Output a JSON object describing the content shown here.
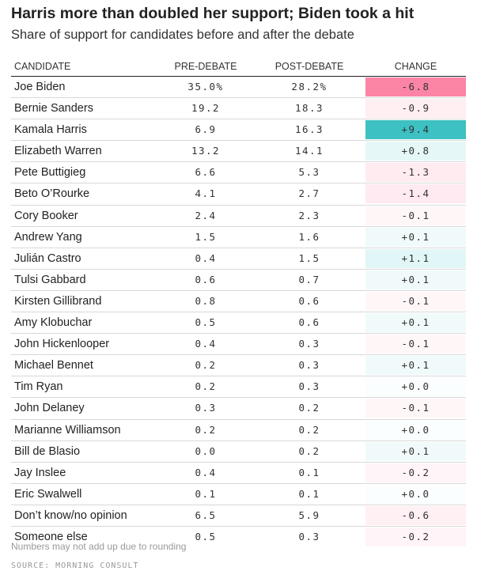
{
  "title": "Harris more than doubled her support; Biden took a hit",
  "subtitle": "Share of support for candidates before and after the debate",
  "note": "Numbers may not add up due to rounding",
  "source": "SOURCE: MORNING CONSULT",
  "colors": {
    "positive": "#3ec1c3",
    "negative": "#fc84a5",
    "text": "#222222",
    "muted": "#999999"
  },
  "chart_data": {
    "type": "table",
    "columns": [
      "CANDIDATE",
      "PRE-DEBATE",
      "POST-DEBATE",
      "CHANGE"
    ],
    "rows": [
      {
        "candidate": "Joe Biden",
        "pre": "35.0%",
        "post": "28.2%",
        "change": "-6.8",
        "change_value": -6.8
      },
      {
        "candidate": "Bernie Sanders",
        "pre": "19.2",
        "post": "18.3",
        "change": "-0.9",
        "change_value": -0.9
      },
      {
        "candidate": "Kamala Harris",
        "pre": "6.9",
        "post": "16.3",
        "change": "+9.4",
        "change_value": 9.4
      },
      {
        "candidate": "Elizabeth Warren",
        "pre": "13.2",
        "post": "14.1",
        "change": "+0.8",
        "change_value": 0.8
      },
      {
        "candidate": "Pete Buttigieg",
        "pre": "6.6",
        "post": "5.3",
        "change": "-1.3",
        "change_value": -1.3
      },
      {
        "candidate": "Beto O’Rourke",
        "pre": "4.1",
        "post": "2.7",
        "change": "-1.4",
        "change_value": -1.4
      },
      {
        "candidate": "Cory Booker",
        "pre": "2.4",
        "post": "2.3",
        "change": "-0.1",
        "change_value": -0.1
      },
      {
        "candidate": "Andrew Yang",
        "pre": "1.5",
        "post": "1.6",
        "change": "+0.1",
        "change_value": 0.1
      },
      {
        "candidate": "Julián Castro",
        "pre": "0.4",
        "post": "1.5",
        "change": "+1.1",
        "change_value": 1.1
      },
      {
        "candidate": "Tulsi Gabbard",
        "pre": "0.6",
        "post": "0.7",
        "change": "+0.1",
        "change_value": 0.1
      },
      {
        "candidate": "Kirsten Gillibrand",
        "pre": "0.8",
        "post": "0.6",
        "change": "-0.1",
        "change_value": -0.1
      },
      {
        "candidate": "Amy Klobuchar",
        "pre": "0.5",
        "post": "0.6",
        "change": "+0.1",
        "change_value": 0.1
      },
      {
        "candidate": "John Hickenlooper",
        "pre": "0.4",
        "post": "0.3",
        "change": "-0.1",
        "change_value": -0.1
      },
      {
        "candidate": "Michael Bennet",
        "pre": "0.2",
        "post": "0.3",
        "change": "+0.1",
        "change_value": 0.1
      },
      {
        "candidate": "Tim Ryan",
        "pre": "0.2",
        "post": "0.3",
        "change": "+0.0",
        "change_value": 0.0
      },
      {
        "candidate": "John Delaney",
        "pre": "0.3",
        "post": "0.2",
        "change": "-0.1",
        "change_value": -0.1
      },
      {
        "candidate": "Marianne Williamson",
        "pre": "0.2",
        "post": "0.2",
        "change": "+0.0",
        "change_value": 0.0
      },
      {
        "candidate": "Bill de Blasio",
        "pre": "0.0",
        "post": "0.2",
        "change": "+0.1",
        "change_value": 0.1
      },
      {
        "candidate": "Jay Inslee",
        "pre": "0.4",
        "post": "0.1",
        "change": "-0.2",
        "change_value": -0.2
      },
      {
        "candidate": "Eric Swalwell",
        "pre": "0.1",
        "post": "0.1",
        "change": "+0.0",
        "change_value": 0.0
      },
      {
        "candidate": "Don’t know/no opinion",
        "pre": "6.5",
        "post": "5.9",
        "change": "-0.6",
        "change_value": -0.6
      },
      {
        "candidate": "Someone else",
        "pre": "0.5",
        "post": "0.3",
        "change": "-0.2",
        "change_value": -0.2
      }
    ]
  }
}
